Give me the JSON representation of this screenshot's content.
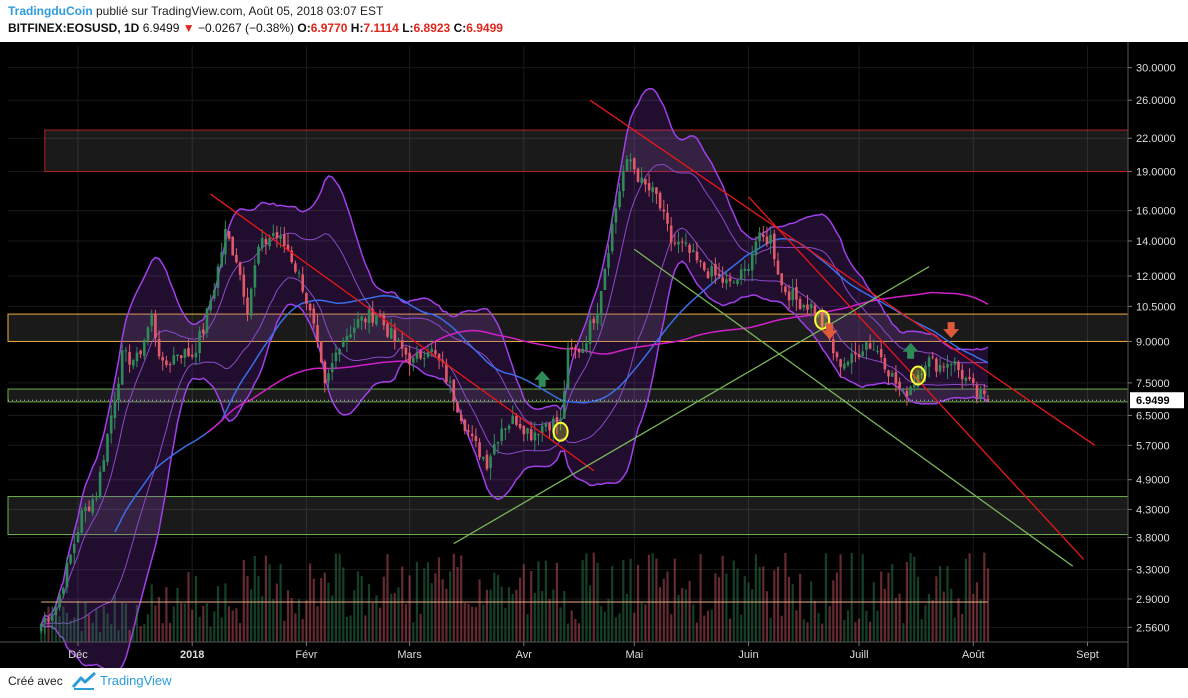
{
  "header": {
    "author": "TradingduCoin",
    "published": " publié sur TradingView.com, Août 05, 2018 03:07 EST",
    "symbol": "BITFINEX:EOSUSD, 1D",
    "last": "6.9499",
    "change_arrow": "▼",
    "change": "−0.0267 (−0.38%)",
    "o_label": "O:",
    "o_value": "6.9770",
    "h_label": "H:",
    "h_value": "7.1114",
    "l_label": "L:",
    "l_value": "6.8923",
    "c_label": "C:",
    "c_value": "6.9499"
  },
  "footer": {
    "created": "Créé avec",
    "brand": "TradingView",
    "logo_icon": "tradingview-logo-icon"
  },
  "colors": {
    "background": "#000000",
    "grid": "#1a1a1a",
    "up_candle": "#2e8b57",
    "down_candle": "#e05a6a",
    "red_trendline": "#e81818",
    "green_trendline": "#77b45a",
    "orange_level": "#f0b040",
    "green_level": "#6ab04c",
    "resistance_zone": "#b52222",
    "bollinger_outer": "#a040e8",
    "ma_blue": "#3a6ee8",
    "ma_magenta": "#d020c8",
    "volume_ma": "#e8b080",
    "price_label_bg": "#ffffff",
    "circle_marker": "#ffff33",
    "arrow_up": "#2e8b57",
    "arrow_down": "#e05a3a"
  },
  "chart_data": {
    "type": "candlestick",
    "symbol": "BITFINEX:EOSUSD",
    "interval": "1D",
    "y_scale": "log",
    "ylim": [
      2.4,
      33
    ],
    "y_ticks": [
      30.0,
      26.0,
      22.0,
      19.0,
      16.0,
      14.0,
      12.0,
      10.5,
      9.0,
      7.5,
      6.5,
      5.7,
      4.9,
      4.3,
      3.8,
      3.3,
      2.9,
      2.56
    ],
    "y_tick_labels": [
      "30.0000",
      "26.0000",
      "22.0000",
      "19.0000",
      "16.0000",
      "14.0000",
      "12.0000",
      "10.5000",
      "9.0000",
      "7.5000",
      "6.5000",
      "5.7000",
      "4.9000",
      "4.3000",
      "3.8000",
      "3.3000",
      "2.9000",
      "2.5600"
    ],
    "x_tick_labels": [
      "Déc",
      "2018",
      "Févr",
      "Mars",
      "Avr",
      "Mai",
      "Juin",
      "Juill",
      "Août",
      "Sept"
    ],
    "x_tick_dates": [
      "2017-12-01",
      "2018-01-01",
      "2018-02-01",
      "2018-03-01",
      "2018-04-01",
      "2018-05-01",
      "2018-06-01",
      "2018-07-01",
      "2018-08-01",
      "2018-09-01"
    ],
    "last_price_label": "6.9499",
    "close_anchors": [
      {
        "date": "2017-11-21",
        "close": 2.6
      },
      {
        "date": "2017-11-25",
        "close": 2.8
      },
      {
        "date": "2017-11-29",
        "close": 3.5
      },
      {
        "date": "2017-12-02",
        "close": 4.2
      },
      {
        "date": "2017-12-06",
        "close": 4.6
      },
      {
        "date": "2017-12-10",
        "close": 6.5
      },
      {
        "date": "2017-12-13",
        "close": 8.4
      },
      {
        "date": "2017-12-17",
        "close": 8.3
      },
      {
        "date": "2017-12-21",
        "close": 10.0
      },
      {
        "date": "2017-12-24",
        "close": 8.0
      },
      {
        "date": "2017-12-28",
        "close": 8.6
      },
      {
        "date": "2018-01-01",
        "close": 8.5
      },
      {
        "date": "2018-01-04",
        "close": 9.5
      },
      {
        "date": "2018-01-07",
        "close": 11.5
      },
      {
        "date": "2018-01-10",
        "close": 14.5
      },
      {
        "date": "2018-01-13",
        "close": 13.0
      },
      {
        "date": "2018-01-16",
        "close": 10.5
      },
      {
        "date": "2018-01-19",
        "close": 13.5
      },
      {
        "date": "2018-01-23",
        "close": 14.5
      },
      {
        "date": "2018-01-27",
        "close": 13.5
      },
      {
        "date": "2018-01-31",
        "close": 11.5
      },
      {
        "date": "2018-02-03",
        "close": 9.5
      },
      {
        "date": "2018-02-06",
        "close": 7.3
      },
      {
        "date": "2018-02-10",
        "close": 9.0
      },
      {
        "date": "2018-02-15",
        "close": 9.8
      },
      {
        "date": "2018-02-20",
        "close": 10.2
      },
      {
        "date": "2018-02-25",
        "close": 9.0
      },
      {
        "date": "2018-03-02",
        "close": 8.2
      },
      {
        "date": "2018-03-06",
        "close": 8.8
      },
      {
        "date": "2018-03-10",
        "close": 8.0
      },
      {
        "date": "2018-03-14",
        "close": 6.8
      },
      {
        "date": "2018-03-18",
        "close": 5.8
      },
      {
        "date": "2018-03-22",
        "close": 5.3
      },
      {
        "date": "2018-03-26",
        "close": 6.2
      },
      {
        "date": "2018-03-30",
        "close": 6.4
      },
      {
        "date": "2018-04-03",
        "close": 6.0
      },
      {
        "date": "2018-04-07",
        "close": 6.3
      },
      {
        "date": "2018-04-11",
        "close": 6.3
      },
      {
        "date": "2018-04-13",
        "close": 8.5
      },
      {
        "date": "2018-04-17",
        "close": 8.8
      },
      {
        "date": "2018-04-21",
        "close": 10.5
      },
      {
        "date": "2018-04-25",
        "close": 15.0
      },
      {
        "date": "2018-04-28",
        "close": 19.0
      },
      {
        "date": "2018-04-30",
        "close": 20.0
      },
      {
        "date": "2018-05-03",
        "close": 18.0
      },
      {
        "date": "2018-05-07",
        "close": 17.0
      },
      {
        "date": "2018-05-11",
        "close": 14.0
      },
      {
        "date": "2018-05-15",
        "close": 13.5
      },
      {
        "date": "2018-05-19",
        "close": 12.5
      },
      {
        "date": "2018-05-23",
        "close": 12.0
      },
      {
        "date": "2018-05-27",
        "close": 11.5
      },
      {
        "date": "2018-05-31",
        "close": 12.2
      },
      {
        "date": "2018-06-03",
        "close": 14.0
      },
      {
        "date": "2018-06-07",
        "close": 14.2
      },
      {
        "date": "2018-06-10",
        "close": 11.5
      },
      {
        "date": "2018-06-14",
        "close": 10.8
      },
      {
        "date": "2018-06-18",
        "close": 10.5
      },
      {
        "date": "2018-06-22",
        "close": 9.5
      },
      {
        "date": "2018-06-25",
        "close": 8.2
      },
      {
        "date": "2018-06-29",
        "close": 8.3
      },
      {
        "date": "2018-07-03",
        "close": 9.0
      },
      {
        "date": "2018-07-07",
        "close": 8.5
      },
      {
        "date": "2018-07-10",
        "close": 7.7
      },
      {
        "date": "2018-07-13",
        "close": 7.1
      },
      {
        "date": "2018-07-16",
        "close": 7.6
      },
      {
        "date": "2018-07-19",
        "close": 8.3
      },
      {
        "date": "2018-07-23",
        "close": 8.1
      },
      {
        "date": "2018-07-26",
        "close": 8.3
      },
      {
        "date": "2018-07-30",
        "close": 7.6
      },
      {
        "date": "2018-08-02",
        "close": 7.1
      },
      {
        "date": "2018-08-05",
        "close": 6.9499
      }
    ],
    "horizontal_levels": [
      {
        "name": "resistance-zone",
        "from": 19.0,
        "to": 22.8,
        "color": "#b52222"
      },
      {
        "name": "orange-zone",
        "from": 9.0,
        "to": 10.15,
        "color": "#f0b040"
      },
      {
        "name": "green-zone-upper",
        "from": 6.9,
        "to": 7.3,
        "color": "#6ab04c"
      },
      {
        "name": "green-zone-lower",
        "from": 3.85,
        "to": 4.55,
        "color": "#6ab04c"
      }
    ],
    "trendlines": [
      {
        "name": "red-trendline-1",
        "color": "#e81818",
        "from": {
          "date": "2018-01-06",
          "value": 17.2
        },
        "to": {
          "date": "2018-04-20",
          "value": 5.1
        }
      },
      {
        "name": "red-trendline-2",
        "color": "#e81818",
        "from": {
          "date": "2018-04-19",
          "value": 26.0
        },
        "to": {
          "date": "2018-09-03",
          "value": 5.7
        }
      },
      {
        "name": "red-trendline-3",
        "color": "#e81818",
        "from": {
          "date": "2018-06-01",
          "value": 17.0
        },
        "to": {
          "date": "2018-08-31",
          "value": 3.45
        }
      },
      {
        "name": "green-trendline-up",
        "color": "#77b45a",
        "from": {
          "date": "2018-03-13",
          "value": 3.7
        },
        "to": {
          "date": "2018-07-20",
          "value": 12.5
        }
      },
      {
        "name": "green-trendline-down",
        "color": "#77b45a",
        "from": {
          "date": "2018-05-01",
          "value": 13.5
        },
        "to": {
          "date": "2018-08-28",
          "value": 3.35
        }
      }
    ],
    "markers": [
      {
        "name": "yellow-circle-1",
        "type": "circle",
        "date": "2018-04-11",
        "value": 6.05
      },
      {
        "name": "yellow-circle-2",
        "type": "circle",
        "date": "2018-06-21",
        "value": 9.9
      },
      {
        "name": "yellow-circle-3",
        "type": "circle",
        "date": "2018-07-17",
        "value": 7.75
      },
      {
        "name": "green-arrow-up-1",
        "type": "arrow-up",
        "date": "2018-04-06",
        "value": 7.6
      },
      {
        "name": "green-arrow-up-2",
        "type": "arrow-up",
        "date": "2018-07-15",
        "value": 8.6
      },
      {
        "name": "red-arrow-down-1",
        "type": "arrow-down",
        "date": "2018-06-23",
        "value": 9.45
      },
      {
        "name": "red-arrow-down-2",
        "type": "arrow-down",
        "date": "2018-07-26",
        "value": 9.5
      }
    ]
  }
}
